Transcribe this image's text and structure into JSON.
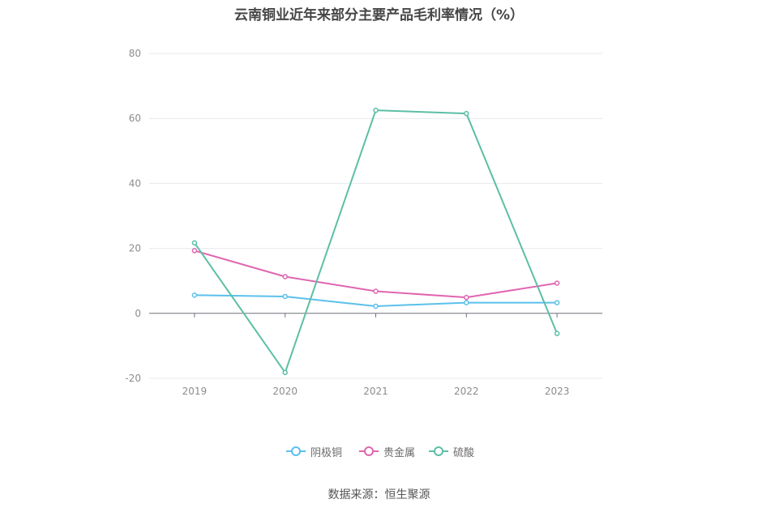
{
  "chart_data": {
    "type": "line",
    "title": "云南铜业近年来部分主要产品毛利率情况（%）",
    "categories": [
      "2019",
      "2020",
      "2021",
      "2022",
      "2023"
    ],
    "y_ticks": [
      "80",
      "60",
      "40",
      "20",
      "0",
      "-20"
    ],
    "ylim": [
      -20,
      80
    ],
    "grid": true,
    "legend_position": "bottom",
    "series": [
      {
        "name": "阴极铜",
        "color": "#5bc0eb",
        "values": [
          5.6,
          5.2,
          2.2,
          3.3,
          3.3
        ]
      },
      {
        "name": "贵金属",
        "color": "#e066b0",
        "values": [
          19.3,
          11.3,
          6.8,
          4.9,
          9.3
        ]
      },
      {
        "name": "硫酸",
        "color": "#5cbfa5",
        "values": [
          21.7,
          -18.2,
          62.5,
          61.5,
          -6.2
        ]
      }
    ]
  },
  "source": "数据来源：恒生聚源"
}
